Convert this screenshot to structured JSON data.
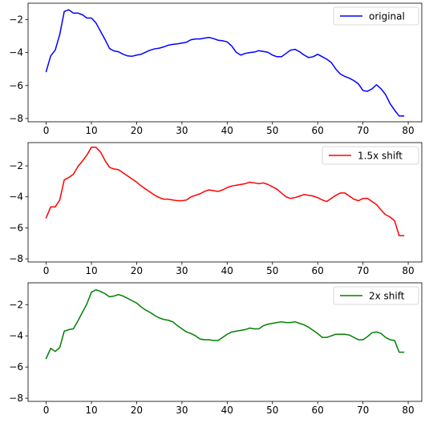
{
  "chart_data": [
    {
      "type": "line",
      "title": "",
      "xlabel": "",
      "ylabel": "",
      "xlim": [
        -4,
        83
      ],
      "ylim": [
        -8.2,
        -1.0
      ],
      "xticks": [
        0,
        10,
        20,
        30,
        40,
        50,
        60,
        70,
        80
      ],
      "yticks": [
        -8,
        -6,
        -4,
        -2
      ],
      "legend_position": "top-right",
      "grid": false,
      "series": [
        {
          "name": "original",
          "color": "#0000ff",
          "x": [
            0,
            1,
            2,
            3,
            4,
            5,
            6,
            7,
            8,
            9,
            10,
            11,
            12,
            13,
            14,
            15,
            16,
            17,
            18,
            19,
            20,
            21,
            22,
            23,
            24,
            25,
            26,
            27,
            28,
            29,
            30,
            31,
            32,
            33,
            34,
            35,
            36,
            37,
            38,
            39,
            40,
            41,
            42,
            43,
            44,
            45,
            46,
            47,
            48,
            49,
            50,
            51,
            52,
            53,
            54,
            55,
            56,
            57,
            58,
            59,
            60,
            61,
            62,
            63,
            64,
            65,
            66,
            67,
            68,
            69,
            70,
            71,
            72,
            73,
            74,
            75,
            76,
            77,
            78,
            79
          ],
          "values": [
            -5.15,
            -4.2,
            -3.85,
            -2.9,
            -1.5,
            -1.4,
            -1.6,
            -1.6,
            -1.7,
            -1.9,
            -1.9,
            -2.2,
            -2.7,
            -3.2,
            -3.75,
            -3.9,
            -3.95,
            -4.1,
            -4.2,
            -4.22,
            -4.15,
            -4.1,
            -3.97,
            -3.85,
            -3.77,
            -3.73,
            -3.65,
            -3.55,
            -3.5,
            -3.47,
            -3.42,
            -3.37,
            -3.22,
            -3.17,
            -3.17,
            -3.12,
            -3.08,
            -3.15,
            -3.25,
            -3.28,
            -3.35,
            -3.6,
            -3.98,
            -4.15,
            -4.05,
            -4.0,
            -3.97,
            -3.88,
            -3.93,
            -3.98,
            -4.15,
            -4.25,
            -4.25,
            -4.05,
            -3.85,
            -3.8,
            -3.95,
            -4.15,
            -4.3,
            -4.25,
            -4.1,
            -4.25,
            -4.4,
            -4.6,
            -5.0,
            -5.3,
            -5.45,
            -5.55,
            -5.7,
            -5.9,
            -6.3,
            -6.35,
            -6.2,
            -5.95,
            -6.2,
            -6.55,
            -7.1,
            -7.5,
            -7.85,
            -7.85
          ]
        }
      ]
    },
    {
      "type": "line",
      "title": "",
      "xlabel": "",
      "ylabel": "",
      "xlim": [
        -4,
        83
      ],
      "ylim": [
        -8.2,
        -0.5
      ],
      "xticks": [
        0,
        10,
        20,
        30,
        40,
        50,
        60,
        70,
        80
      ],
      "yticks": [
        -8,
        -6,
        -4,
        -2
      ],
      "legend_position": "top-right",
      "grid": false,
      "series": [
        {
          "name": "1.5x shift",
          "color": "#ff0000",
          "x": [
            0,
            1,
            2,
            3,
            4,
            5,
            6,
            7,
            8,
            9,
            10,
            11,
            12,
            13,
            14,
            15,
            16,
            17,
            18,
            19,
            20,
            21,
            22,
            23,
            24,
            25,
            26,
            27,
            28,
            29,
            30,
            31,
            32,
            33,
            34,
            35,
            36,
            37,
            38,
            39,
            40,
            41,
            42,
            43,
            44,
            45,
            46,
            47,
            48,
            49,
            50,
            51,
            52,
            53,
            54,
            55,
            56,
            57,
            58,
            59,
            60,
            61,
            62,
            63,
            64,
            65,
            66,
            67,
            68,
            69,
            70,
            71,
            72,
            73,
            74,
            75,
            76,
            77,
            78,
            79
          ],
          "values": [
            -5.35,
            -4.65,
            -4.65,
            -4.2,
            -2.9,
            -2.75,
            -2.55,
            -2.05,
            -1.7,
            -1.3,
            -0.8,
            -0.8,
            -1.1,
            -1.65,
            -2.1,
            -2.2,
            -2.25,
            -2.45,
            -2.65,
            -2.85,
            -3.05,
            -3.3,
            -3.5,
            -3.7,
            -3.9,
            -4.05,
            -4.15,
            -4.15,
            -4.2,
            -4.25,
            -4.25,
            -4.2,
            -4.0,
            -3.9,
            -3.8,
            -3.65,
            -3.55,
            -3.6,
            -3.65,
            -3.55,
            -3.4,
            -3.3,
            -3.25,
            -3.2,
            -3.15,
            -3.05,
            -3.1,
            -3.15,
            -3.1,
            -3.2,
            -3.35,
            -3.5,
            -3.75,
            -4.0,
            -4.1,
            -4.05,
            -3.95,
            -3.85,
            -3.9,
            -3.95,
            -4.05,
            -4.2,
            -4.3,
            -4.1,
            -3.9,
            -3.75,
            -3.75,
            -3.95,
            -4.15,
            -4.25,
            -4.1,
            -4.1,
            -4.3,
            -4.5,
            -4.85,
            -5.15,
            -5.3,
            -5.55,
            -6.5,
            -6.5
          ]
        }
      ]
    },
    {
      "type": "line",
      "title": "",
      "xlabel": "",
      "ylabel": "",
      "xlim": [
        -4,
        83
      ],
      "ylim": [
        -8.2,
        -0.6
      ],
      "xticks": [
        0,
        10,
        20,
        30,
        40,
        50,
        60,
        70,
        80
      ],
      "yticks": [
        -8,
        -6,
        -4,
        -2
      ],
      "legend_position": "top-right",
      "grid": false,
      "series": [
        {
          "name": "2x shift",
          "color": "#008000",
          "x": [
            0,
            1,
            2,
            3,
            4,
            5,
            6,
            7,
            8,
            9,
            10,
            11,
            12,
            13,
            14,
            15,
            16,
            17,
            18,
            19,
            20,
            21,
            22,
            23,
            24,
            25,
            26,
            27,
            28,
            29,
            30,
            31,
            32,
            33,
            34,
            35,
            36,
            37,
            38,
            39,
            40,
            41,
            42,
            43,
            44,
            45,
            46,
            47,
            48,
            49,
            50,
            51,
            52,
            53,
            54,
            55,
            56,
            57,
            58,
            59,
            60,
            61,
            62,
            63,
            64,
            65,
            66,
            67,
            68,
            69,
            70,
            71,
            72,
            73,
            74,
            75,
            76,
            77,
            78,
            79
          ],
          "values": [
            -5.45,
            -4.8,
            -5.0,
            -4.75,
            -3.7,
            -3.6,
            -3.55,
            -3.05,
            -2.5,
            -1.95,
            -1.2,
            -1.05,
            -1.15,
            -1.3,
            -1.5,
            -1.45,
            -1.35,
            -1.45,
            -1.6,
            -1.75,
            -1.9,
            -2.15,
            -2.35,
            -2.5,
            -2.7,
            -2.85,
            -2.95,
            -3.0,
            -3.1,
            -3.35,
            -3.55,
            -3.75,
            -3.85,
            -4.0,
            -4.2,
            -4.25,
            -4.25,
            -4.3,
            -4.3,
            -4.1,
            -3.9,
            -3.75,
            -3.7,
            -3.65,
            -3.6,
            -3.5,
            -3.55,
            -3.55,
            -3.35,
            -3.25,
            -3.2,
            -3.15,
            -3.1,
            -3.15,
            -3.15,
            -3.1,
            -3.2,
            -3.3,
            -3.45,
            -3.65,
            -3.85,
            -4.1,
            -4.1,
            -4.0,
            -3.9,
            -3.9,
            -3.9,
            -3.95,
            -4.1,
            -4.25,
            -4.25,
            -4.05,
            -3.8,
            -3.75,
            -3.85,
            -4.1,
            -4.25,
            -4.3,
            -5.05,
            -5.05
          ]
        }
      ]
    }
  ]
}
